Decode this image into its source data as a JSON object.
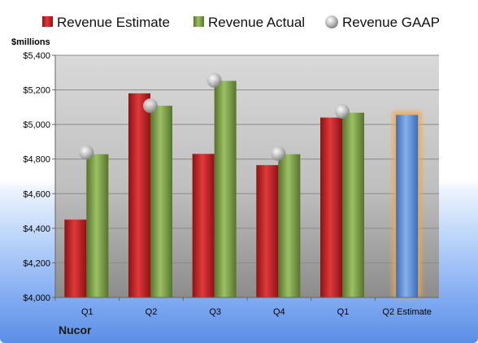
{
  "chart_data": {
    "type": "bar",
    "company": "Nucor",
    "units_label": "$millions",
    "categories": [
      "Q1",
      "Q2",
      "Q3",
      "Q4",
      "Q1",
      "Q2 Estimate"
    ],
    "series": [
      {
        "name": "Revenue Estimate",
        "kind": "bar",
        "color": "#c0282a",
        "values": [
          4450,
          5180,
          4830,
          4765,
          5040,
          null
        ]
      },
      {
        "name": "Revenue Actual",
        "kind": "bar",
        "color": "#7da24a",
        "values": [
          4828,
          5108,
          5252,
          4828,
          5068,
          null
        ]
      },
      {
        "name": "Revenue GAAP",
        "kind": "marker",
        "color": "#a8a8a8",
        "values": [
          4838,
          5108,
          5255,
          4832,
          5075,
          null
        ]
      }
    ],
    "projection": {
      "category": "Q2 Estimate",
      "value": 5055,
      "color": "#5b8fd6",
      "highlight": "#f3a64a"
    },
    "ylim": [
      4000,
      5400
    ],
    "y_ticks": [
      "$4,000",
      "$4,200",
      "$4,400",
      "$4,600",
      "$4,800",
      "$5,000",
      "$5,200",
      "$5,400"
    ],
    "y_tick_values": [
      4000,
      4200,
      4400,
      4600,
      4800,
      5000,
      5200,
      5400
    ],
    "grid": true,
    "legend_position": "top"
  }
}
